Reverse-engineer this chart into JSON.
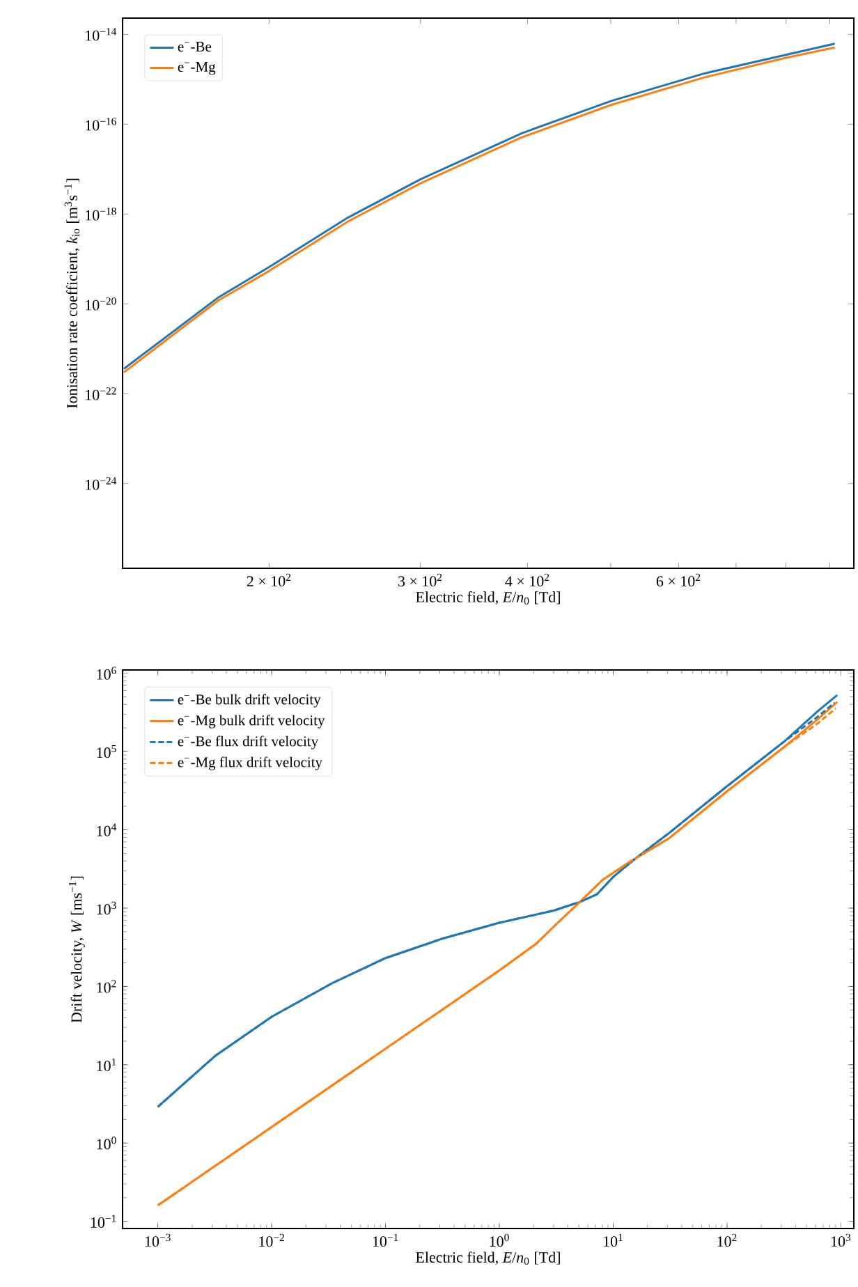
{
  "chart_data": [
    {
      "type": "line",
      "xlabel": "Electric field, *E*/*n*$_{0}$ [Td]",
      "ylabel": "Ionisation rate coefficient, *k*$_{io}$ [m$^{3}$s$^{−1}$]",
      "log": "xy",
      "legend": "top left",
      "xlim": [
        135,
        960
      ],
      "ylim": [
        1.3e-26,
        2.3e-14
      ],
      "xticks": [
        {
          "value": 200,
          "label": "2 × 10$^{2}$"
        },
        {
          "value": 300,
          "label": "3 × 10$^{2}$"
        },
        {
          "value": 400,
          "label": "4 × 10$^{2}$"
        },
        {
          "value": 500,
          "label": null
        },
        {
          "value": 600,
          "label": "6 × 10$^{2}$"
        },
        {
          "value": 700,
          "label": null
        },
        {
          "value": 800,
          "label": null
        },
        {
          "value": 900,
          "label": null
        }
      ],
      "yticks": [
        {
          "value": 1e-24,
          "label": "10$^{−24}$"
        },
        {
          "value": 1e-22,
          "label": "10$^{−22}$"
        },
        {
          "value": 1e-20,
          "label": "10$^{−20}$"
        },
        {
          "value": 1e-18,
          "label": "10$^{−18}$"
        },
        {
          "value": 1e-16,
          "label": "10$^{−16}$"
        },
        {
          "value": 1e-14,
          "label": "10$^{−14}$"
        }
      ],
      "series": [
        {
          "name": "e$^{−}$-Be",
          "color": "#1f77b4",
          "x": [
            135.5,
            174.6,
            200,
            247,
            300,
            394,
            501,
            643,
            800,
            912
          ],
          "values": [
            3.6e-22,
            1.4e-20,
            6.6e-20,
            8.3e-19,
            5.9e-18,
            6.3e-17,
            3.3e-16,
            1.35e-15,
            3.5e-15,
            6.2e-15
          ]
        },
        {
          "name": "e$^{−}$-Mg",
          "color": "#ff7f0e",
          "x": [
            135.5,
            174.6,
            200,
            247,
            300,
            394,
            501,
            643,
            800,
            912
          ],
          "values": [
            3e-22,
            1.2e-20,
            5.4e-20,
            6.8e-19,
            4.8e-18,
            5.1e-17,
            2.7e-16,
            1.1e-15,
            3e-15,
            5.1e-15
          ]
        }
      ]
    },
    {
      "type": "line",
      "xlabel": "Electric field, *E*/*n*$_{0}$ [Td]",
      "ylabel": "Drift velocity, *W* [ms$^{−1}$]",
      "log": "xy",
      "legend": "top left",
      "xlim": [
        0.00049,
        1300
      ],
      "ylim": [
        0.081,
        1100000
      ],
      "xticks": [
        {
          "value": 0.001,
          "label": "10$^{−3}$"
        },
        {
          "value": 0.01,
          "label": "10$^{−2}$"
        },
        {
          "value": 0.1,
          "label": "10$^{−1}$"
        },
        {
          "value": 1,
          "label": "10$^{0}$"
        },
        {
          "value": 10,
          "label": "10$^{1}$"
        },
        {
          "value": 100,
          "label": "10$^{2}$"
        },
        {
          "value": 1000,
          "label": "10$^{3}$"
        }
      ],
      "yticks": [
        {
          "value": 0.1,
          "label": "10$^{−1}$"
        },
        {
          "value": 1,
          "label": "10$^{0}$"
        },
        {
          "value": 10,
          "label": "10$^{1}$"
        },
        {
          "value": 100,
          "label": "10$^{2}$"
        },
        {
          "value": 1000,
          "label": "10$^{3}$"
        },
        {
          "value": 10000,
          "label": "10$^{4}$"
        },
        {
          "value": 100000,
          "label": "10$^{5}$"
        },
        {
          "value": 1000000,
          "label": "10$^{6}$"
        }
      ],
      "series": [
        {
          "name": "e$^{−}$-Be bulk drift velocity",
          "color": "#1f77b4",
          "line_style": "solid",
          "x": [
            0.001,
            0.0032,
            0.01,
            0.034,
            0.1,
            0.32,
            1,
            3,
            5.1,
            7.2,
            10,
            16,
            31,
            100,
            320,
            630,
            930
          ],
          "values": [
            2.9,
            13,
            41,
            110,
            230,
            410,
            650,
            930,
            1200,
            1500,
            2500,
            4400,
            9100,
            36000,
            135000,
            330000,
            525000
          ]
        },
        {
          "name": "e$^{−}$-Mg bulk drift velocity",
          "color": "#ff7f0e",
          "line_style": "solid",
          "x": [
            0.001,
            0.01,
            0.1,
            1,
            2.1,
            3.3,
            5.1,
            8.1,
            14,
            31,
            100,
            320,
            630,
            930
          ],
          "values": [
            0.16,
            1.6,
            16,
            160,
            350,
            660,
            1200,
            2300,
            3900,
            7800,
            31000,
            115000,
            260000,
            430000
          ]
        },
        {
          "name": "e$^{−}$-Be flux drift velocity",
          "color": "#1f77b4",
          "line_style": "dashed",
          "x": [
            0.001,
            0.0032,
            0.01,
            0.034,
            0.1,
            0.32,
            1,
            3,
            5.1,
            7.2,
            10,
            16,
            31,
            100,
            320,
            630,
            880
          ],
          "values": [
            2.9,
            13,
            41,
            110,
            230,
            410,
            650,
            930,
            1200,
            1500,
            2500,
            4400,
            9100,
            36000,
            135000,
            280000,
            420000
          ]
        },
        {
          "name": "e$^{−}$-Mg flux drift velocity",
          "color": "#ff7f0e",
          "line_style": "dashed",
          "x": [
            0.001,
            0.01,
            0.1,
            1,
            2.1,
            3.3,
            5.1,
            8.1,
            14,
            31,
            100,
            320,
            630,
            900
          ],
          "values": [
            0.16,
            1.6,
            16,
            160,
            350,
            660,
            1200,
            2300,
            3900,
            7800,
            31000,
            115000,
            230000,
            355000
          ]
        }
      ]
    }
  ]
}
